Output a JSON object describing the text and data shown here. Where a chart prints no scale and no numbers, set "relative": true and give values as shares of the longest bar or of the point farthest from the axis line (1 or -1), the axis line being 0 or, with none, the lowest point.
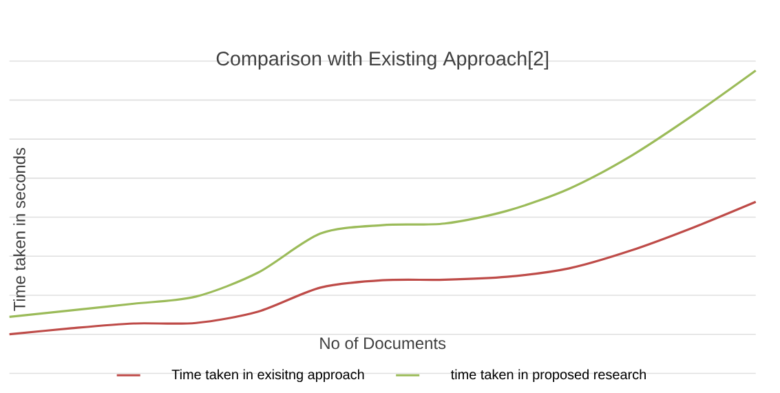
{
  "chart_data": {
    "type": "line",
    "title": "Comparison with Existing Approach[2]",
    "xlabel": "No of Documents",
    "ylabel": "Time taken in seconds",
    "relative": true,
    "grid": "y",
    "legend": "bottom",
    "marker": "none",
    "line_style": "solid",
    "categories": [
      null,
      null,
      null,
      null,
      null,
      null,
      null,
      null,
      null,
      null,
      null,
      null,
      null
    ],
    "series": [
      {
        "name": "Time taken in exisitng approach",
        "color": "#be4b48",
        "values": [
          0,
          0.023,
          0.041,
          0.043,
          0.086,
          0.177,
          0.205,
          0.207,
          0.218,
          0.25,
          0.318,
          0.405,
          0.502
        ]
      },
      {
        "name": "time taken in proposed research",
        "color": "#9bbb59",
        "values": [
          0.066,
          0.091,
          0.116,
          0.143,
          0.234,
          0.382,
          0.414,
          0.42,
          0.468,
          0.552,
          0.677,
          0.832,
          1
        ]
      }
    ]
  }
}
